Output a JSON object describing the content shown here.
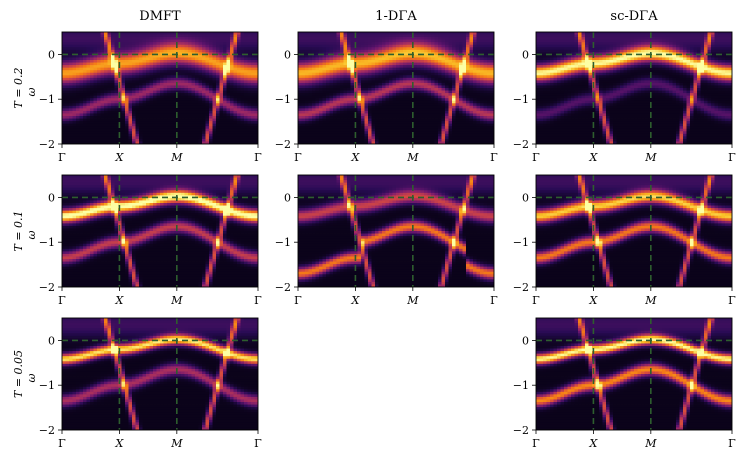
{
  "chart_data": {
    "type": "heatmap",
    "description_layout": "3x3 grid of spectral function A(k, omega) panels along the high-symmetry path Gamma-X-M-Gamma",
    "columns": [
      "DMFT",
      "1-DΓA",
      "sc-DΓA"
    ],
    "rows": [
      {
        "label_prefix": "T = ",
        "label_value": "0.2"
      },
      {
        "label_prefix": "T = ",
        "label_value": "0.1"
      },
      {
        "label_prefix": "T = ",
        "label_value": "0.05"
      }
    ],
    "ylabel": "ω",
    "ylim": [
      -2,
      0.5
    ],
    "yticks": [
      "0",
      "−1",
      "−2"
    ],
    "ytick_values": [
      0,
      -1,
      -2
    ],
    "xticks": [
      "Γ",
      "X",
      "M",
      "Γ"
    ],
    "xtick_positions": [
      0,
      1,
      2,
      3.414
    ],
    "reference_lines": {
      "omega": 0,
      "k": [
        "X",
        "M"
      ],
      "color": "#2e5e2e",
      "style": "dashed"
    },
    "colormap": "inferno",
    "panels": [
      {
        "row": 0,
        "col": 0,
        "present": true,
        "qp_width": 0.16,
        "qp_peak": 0.75,
        "lower_band": 0.55,
        "kink": false
      },
      {
        "row": 0,
        "col": 1,
        "present": true,
        "qp_width": 0.16,
        "qp_peak": 0.8,
        "lower_band": 0.65,
        "kink": false
      },
      {
        "row": 0,
        "col": 2,
        "present": true,
        "qp_width": 0.12,
        "qp_peak": 0.95,
        "lower_band": 0.3,
        "kink": false
      },
      {
        "row": 1,
        "col": 0,
        "present": true,
        "qp_width": 0.1,
        "qp_peak": 1.0,
        "lower_band": 0.7,
        "kink": false
      },
      {
        "row": 1,
        "col": 1,
        "present": true,
        "qp_width": 0.1,
        "qp_peak": 0.5,
        "lower_band": 0.95,
        "kink": true
      },
      {
        "row": 1,
        "col": 2,
        "present": true,
        "qp_width": 0.1,
        "qp_peak": 0.85,
        "lower_band": 0.95,
        "kink": false
      },
      {
        "row": 2,
        "col": 0,
        "present": true,
        "qp_width": 0.08,
        "qp_peak": 0.9,
        "lower_band": 0.6,
        "kink": false
      },
      {
        "row": 2,
        "col": 1,
        "present": false
      },
      {
        "row": 2,
        "col": 2,
        "present": true,
        "qp_width": 0.08,
        "qp_peak": 0.95,
        "lower_band": 1.0,
        "kink": false
      }
    ]
  }
}
